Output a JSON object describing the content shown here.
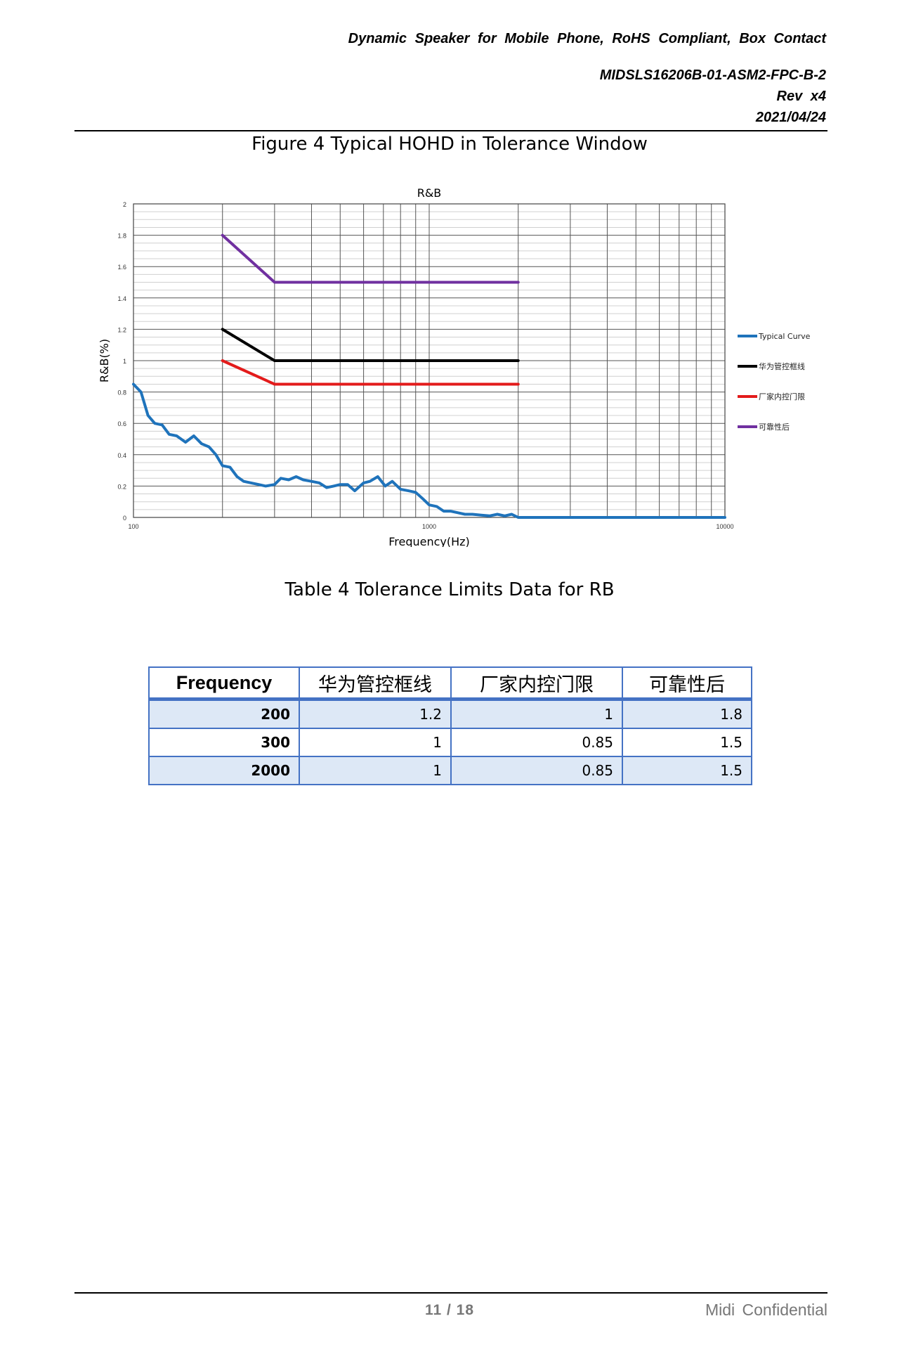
{
  "header": {
    "title": "Dynamic  Speaker  for  Mobile  Phone,  RoHS  Compliant,  Box  Contact",
    "doc_number": "MIDSLS16206B-01-ASM2-FPC-B-2",
    "rev": "Rev  x4",
    "date": "2021/04/24"
  },
  "figure_caption": "Figure 4 Typical HOHD in Tolerance Window",
  "chart_data": {
    "type": "line",
    "title": "R&B",
    "xlabel": "Frequency(Hz)",
    "ylabel": "R&B(%)",
    "x_scale": "log",
    "xlim": [
      100,
      10000
    ],
    "ylim": [
      0,
      2
    ],
    "x_ticks": [
      100,
      1000,
      10000
    ],
    "x_tick_labels": [
      "100",
      "1000",
      "10000"
    ],
    "y_ticks": [
      0,
      0.2,
      0.4,
      0.6,
      0.8,
      1,
      1.2,
      1.4,
      1.6,
      1.8,
      2
    ],
    "y_tick_labels": [
      "0",
      "0.2",
      "0.4",
      "0.6",
      "0.8",
      "1",
      "1.2",
      "1.4",
      "1.6",
      "1.8",
      "2"
    ],
    "grid": true,
    "legend_position": "right",
    "series": [
      {
        "name": "Typical Curve",
        "color": "#1f73bb",
        "x": [
          100,
          106,
          112,
          118,
          125,
          132,
          140,
          150,
          160,
          170,
          180,
          190,
          200,
          212,
          224,
          236,
          250,
          265,
          280,
          300,
          315,
          335,
          355,
          375,
          400,
          425,
          450,
          475,
          500,
          530,
          560,
          600,
          630,
          670,
          710,
          750,
          800,
          850,
          900,
          950,
          1000,
          1060,
          1120,
          1180,
          1250,
          1320,
          1400,
          1500,
          1600,
          1700,
          1800,
          1900,
          2000,
          2500,
          3150,
          4000,
          5000,
          6300,
          8000,
          10000
        ],
        "y": [
          0.85,
          0.8,
          0.65,
          0.6,
          0.59,
          0.53,
          0.52,
          0.48,
          0.52,
          0.47,
          0.45,
          0.4,
          0.33,
          0.32,
          0.26,
          0.23,
          0.22,
          0.21,
          0.2,
          0.21,
          0.25,
          0.24,
          0.26,
          0.24,
          0.23,
          0.22,
          0.19,
          0.2,
          0.21,
          0.21,
          0.17,
          0.22,
          0.23,
          0.26,
          0.2,
          0.23,
          0.18,
          0.17,
          0.16,
          0.12,
          0.08,
          0.07,
          0.04,
          0.04,
          0.03,
          0.02,
          0.02,
          0.015,
          0.01,
          0.02,
          0.01,
          0.02,
          0.0,
          0.0,
          0.0,
          0.0,
          0.0,
          0.0,
          0.0,
          0.0
        ]
      },
      {
        "name": "华为管控框线",
        "color": "#000000",
        "x": [
          200,
          300,
          2000
        ],
        "y": [
          1.2,
          1,
          1
        ]
      },
      {
        "name": "厂家内控门限",
        "color": "#e31b1b",
        "x": [
          200,
          300,
          2000
        ],
        "y": [
          1,
          0.85,
          0.85
        ]
      },
      {
        "name": "可靠性后",
        "color": "#7030a0",
        "x": [
          200,
          300,
          2000
        ],
        "y": [
          1.8,
          1.5,
          1.5
        ]
      }
    ]
  },
  "table_caption": "Table 4 Tolerance Limits Data for RB",
  "table": {
    "headers": [
      "Frequency",
      "华为管控框线",
      "厂家内控门限",
      "可靠性后"
    ],
    "rows": [
      [
        "200",
        "1.2",
        "1",
        "1.8"
      ],
      [
        "300",
        "1",
        "0.85",
        "1.5"
      ],
      [
        "2000",
        "1",
        "0.85",
        "1.5"
      ]
    ]
  },
  "footer": {
    "page": "11  /  18",
    "confidential": "Midi  Confidential"
  }
}
